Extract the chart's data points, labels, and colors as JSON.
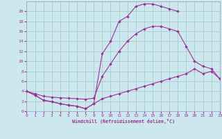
{
  "background_color": "#cce8ee",
  "grid_color": "#aacccc",
  "line_color": "#993399",
  "xlabel": "Windchill (Refroidissement éolien,°C)",
  "xlim": [
    0,
    23
  ],
  "ylim": [
    0,
    22
  ],
  "xticks": [
    0,
    1,
    2,
    3,
    4,
    5,
    6,
    7,
    8,
    9,
    10,
    11,
    12,
    13,
    14,
    15,
    16,
    17,
    18,
    19,
    20,
    21,
    22,
    23
  ],
  "yticks": [
    0,
    2,
    4,
    6,
    8,
    10,
    12,
    14,
    16,
    18,
    20
  ],
  "series": [
    {
      "x": [
        0,
        1,
        2,
        3,
        4,
        5,
        6,
        7,
        8,
        9,
        10,
        11,
        12,
        13,
        14,
        15,
        16,
        17,
        18
      ],
      "y": [
        4.0,
        3.2,
        2.2,
        1.9,
        1.5,
        1.2,
        1.0,
        0.5,
        1.5,
        11.5,
        14.0,
        18.0,
        19.0,
        21.0,
        21.5,
        21.5,
        21.0,
        20.5,
        20.0
      ]
    },
    {
      "x": [
        0,
        1,
        2,
        3,
        4,
        5,
        6,
        7,
        8,
        9,
        10,
        11,
        12,
        13,
        14,
        15,
        16,
        17,
        18,
        19,
        20,
        21,
        22,
        23
      ],
      "y": [
        4.0,
        3.5,
        3.0,
        2.8,
        2.7,
        2.6,
        2.5,
        2.4,
        2.6,
        7.0,
        9.5,
        12.0,
        14.0,
        15.5,
        16.5,
        17.0,
        17.0,
        16.5,
        16.0,
        13.0,
        10.0,
        9.0,
        8.5,
        6.5
      ]
    },
    {
      "x": [
        0,
        1,
        2,
        3,
        4,
        5,
        6,
        7,
        8,
        9,
        10,
        11,
        12,
        13,
        14,
        15,
        16,
        17,
        18,
        19,
        20,
        21,
        22,
        23
      ],
      "y": [
        4.0,
        3.2,
        2.2,
        1.9,
        1.5,
        1.2,
        1.0,
        0.5,
        1.5,
        2.5,
        3.0,
        3.5,
        4.0,
        4.5,
        5.0,
        5.5,
        6.0,
        6.5,
        7.0,
        7.5,
        8.5,
        7.5,
        8.0,
        6.5
      ]
    }
  ]
}
